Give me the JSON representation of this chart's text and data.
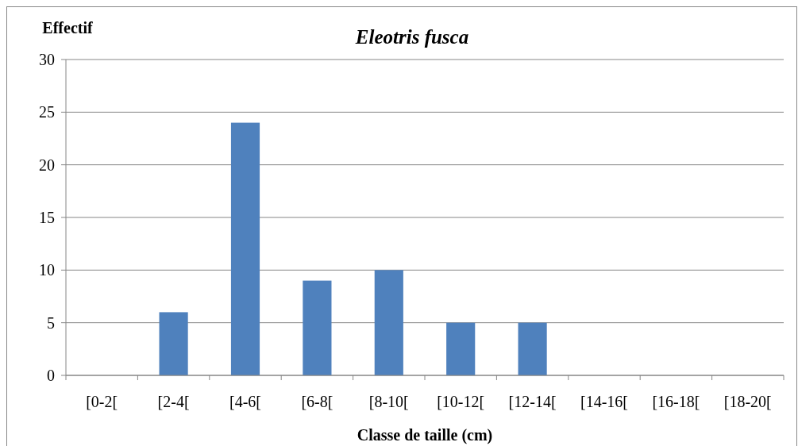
{
  "chart_data": {
    "type": "bar",
    "title": "Eleotris fusca",
    "ylabel": "Effectif",
    "xlabel": "Classe de taille (cm)",
    "categories": [
      "[0-2[",
      "[2-4[",
      "[4-6[",
      "[6-8[",
      "[8-10[",
      "[10-12[",
      "[12-14[",
      "[14-16[",
      "[16-18[",
      "[18-20["
    ],
    "values": [
      0,
      6,
      24,
      9,
      10,
      5,
      5,
      0,
      0,
      0
    ],
    "color": "#4f81bd",
    "ylim": [
      0,
      30
    ],
    "yticks": [
      0,
      5,
      10,
      15,
      20,
      25,
      30
    ],
    "grid": "y"
  }
}
